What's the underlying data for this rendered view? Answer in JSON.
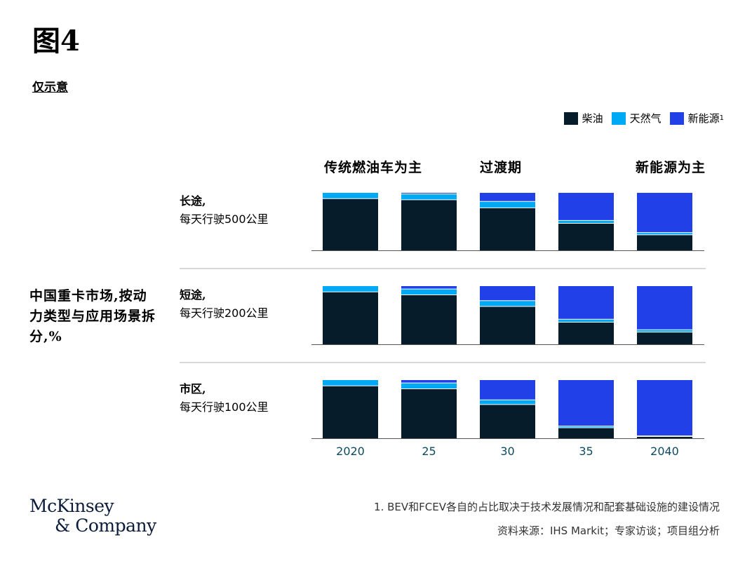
{
  "figure": {
    "title": "图4",
    "subtitle": "仅示意"
  },
  "legend": {
    "diesel": "柴油",
    "gas": "天然气",
    "nev": "新能源",
    "nev_sup": "1"
  },
  "colors": {
    "diesel": "#061c2b",
    "gas": "#00a9f4",
    "nev": "#2140e8",
    "axis": "#555555",
    "tick": "#0b4a5f"
  },
  "phases": [
    "传统燃油车为主",
    "过渡期",
    "新能源为主"
  ],
  "side_title": "中国重卡市场,按动力类型与应用场景拆分,%",
  "rows": [
    {
      "name": "长途,",
      "desc": "每天行驶500公里"
    },
    {
      "name": "短途,",
      "desc": "每天行驶200公里"
    },
    {
      "name": "市区,",
      "desc": "每天行驶100公里"
    }
  ],
  "chart_data": {
    "type": "bar",
    "stacked": true,
    "categories": [
      "2020",
      "25",
      "30",
      "35",
      "2040"
    ],
    "ylim": [
      0,
      100
    ],
    "panels": [
      {
        "series": [
          {
            "name": "柴油",
            "values": [
              90,
              88,
              74,
              47,
              27
            ]
          },
          {
            "name": "天然气",
            "values": [
              10,
              10,
              11,
              5,
              4
            ]
          },
          {
            "name": "新能源",
            "values": [
              0,
              2,
              15,
              48,
              69
            ]
          }
        ]
      },
      {
        "series": [
          {
            "name": "柴油",
            "values": [
              90,
              85,
              65,
              38,
              21
            ]
          },
          {
            "name": "天然气",
            "values": [
              10,
              10,
              10,
              5,
              4
            ]
          },
          {
            "name": "新能源",
            "values": [
              0,
              5,
              25,
              57,
              75
            ]
          }
        ]
      },
      {
        "series": [
          {
            "name": "柴油",
            "values": [
              90,
              85,
              58,
              18,
              3
            ]
          },
          {
            "name": "天然气",
            "values": [
              10,
              10,
              8,
              3,
              1
            ]
          },
          {
            "name": "新能源",
            "values": [
              0,
              5,
              34,
              79,
              96
            ]
          }
        ]
      }
    ]
  },
  "footnote": "1. BEV和FCEV各自的占比取决于技术发展情况和配套基础设施的建设情况",
  "source": "资料来源：IHS Markit；专家访谈；项目组分析",
  "logo": {
    "line1": "McKinsey",
    "line2": "& Company"
  }
}
